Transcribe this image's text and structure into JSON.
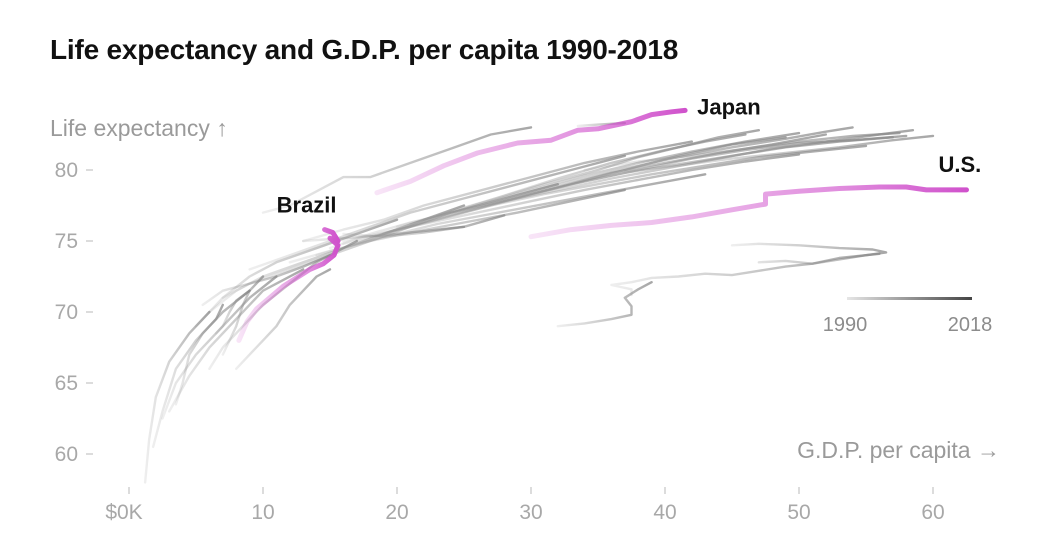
{
  "title": "Life expectancy and G.D.P. per capita 1990-2018",
  "colors": {
    "highlight": "#d052cc",
    "background_line": "#8a8a8a",
    "tick": "#a8a8a8",
    "text": "#111111"
  },
  "chart_data": {
    "type": "line",
    "title": "Life expectancy and G.D.P. per capita 1990-2018",
    "xlabel": "G.D.P. per capita →",
    "ylabel": "Life expectancy ↑",
    "xlim": [
      0,
      65
    ],
    "ylim": [
      58,
      86
    ],
    "x_ticks": [
      {
        "value": 0,
        "label": "$0K"
      },
      {
        "value": 10,
        "label": "10"
      },
      {
        "value": 20,
        "label": "20"
      },
      {
        "value": 30,
        "label": "30"
      },
      {
        "value": 40,
        "label": "40"
      },
      {
        "value": 50,
        "label": "50"
      },
      {
        "value": 60,
        "label": "60"
      }
    ],
    "y_ticks": [
      {
        "value": 60,
        "label": "60"
      },
      {
        "value": 65,
        "label": "65"
      },
      {
        "value": 70,
        "label": "70"
      },
      {
        "value": 75,
        "label": "75"
      },
      {
        "value": 80,
        "label": "80"
      }
    ],
    "legend": {
      "type": "time-gradient",
      "start_label": "1990",
      "end_label": "2018",
      "placement": "right"
    },
    "highlighted_series": [
      {
        "name": "Japan",
        "label": "Japan",
        "points": [
          [
            18.5,
            78.4
          ],
          [
            21,
            79.2
          ],
          [
            23.5,
            80.3
          ],
          [
            26,
            81.2
          ],
          [
            29,
            81.9
          ],
          [
            31.5,
            82.1
          ],
          [
            33.5,
            82.8
          ],
          [
            35,
            82.9
          ],
          [
            37.5,
            83.4
          ],
          [
            39,
            83.9
          ],
          [
            40.5,
            84.1
          ],
          [
            41.5,
            84.2
          ]
        ]
      },
      {
        "name": "United States",
        "label": "U.S.",
        "points": [
          [
            30,
            75.3
          ],
          [
            33,
            75.8
          ],
          [
            36,
            76.1
          ],
          [
            39,
            76.3
          ],
          [
            42,
            76.7
          ],
          [
            45,
            77.2
          ],
          [
            47.5,
            77.6
          ],
          [
            47.5,
            78.3
          ],
          [
            50,
            78.5
          ],
          [
            53,
            78.7
          ],
          [
            56,
            78.8
          ],
          [
            58,
            78.8
          ],
          [
            59.5,
            78.6
          ],
          [
            62.5,
            78.6
          ]
        ]
      },
      {
        "name": "Brazil",
        "label": "Brazil",
        "points": [
          [
            8.2,
            68.0
          ],
          [
            8.8,
            69.3
          ],
          [
            9.5,
            70.2
          ],
          [
            10.5,
            71.0
          ],
          [
            11.5,
            71.8
          ],
          [
            12.5,
            72.4
          ],
          [
            13.5,
            73.0
          ],
          [
            14.5,
            73.4
          ],
          [
            15.3,
            74.0
          ],
          [
            15.6,
            74.7
          ],
          [
            15.0,
            75.2
          ],
          [
            15.6,
            75.0
          ],
          [
            15.2,
            75.6
          ],
          [
            14.6,
            75.8
          ]
        ]
      }
    ],
    "other_series": [
      [
        [
          1.2,
          58.0
        ],
        [
          1.5,
          61
        ],
        [
          2,
          64
        ],
        [
          3,
          66.5
        ],
        [
          4.5,
          68.5
        ],
        [
          6,
          70
        ]
      ],
      [
        [
          1.8,
          60.5
        ],
        [
          2.5,
          63
        ],
        [
          3.5,
          66
        ],
        [
          5,
          68
        ],
        [
          7,
          70
        ],
        [
          9,
          71.5
        ]
      ],
      [
        [
          2.5,
          62.5
        ],
        [
          3.5,
          65
        ],
        [
          5,
          67
        ],
        [
          7,
          69
        ],
        [
          9,
          71
        ],
        [
          11,
          72.5
        ]
      ],
      [
        [
          3,
          63
        ],
        [
          4.5,
          65.5
        ],
        [
          6,
          67.5
        ],
        [
          8,
          69.5
        ],
        [
          10,
          71.5
        ],
        [
          13,
          73
        ]
      ],
      [
        [
          6,
          66
        ],
        [
          7,
          67.5
        ],
        [
          8.5,
          69
        ],
        [
          10,
          70.5
        ],
        [
          12,
          72
        ],
        [
          14,
          73.5
        ],
        [
          17,
          75
        ]
      ],
      [
        [
          5,
          69
        ],
        [
          7,
          71
        ],
        [
          9,
          72.5
        ],
        [
          11,
          73.5
        ],
        [
          14,
          74.5
        ],
        [
          17,
          75.5
        ],
        [
          20,
          76.5
        ]
      ],
      [
        [
          6,
          70
        ],
        [
          8,
          71.5
        ],
        [
          10,
          72.5
        ],
        [
          13,
          73.5
        ],
        [
          16,
          74.5
        ],
        [
          19,
          75.5
        ],
        [
          22,
          76.5
        ],
        [
          25,
          77.5
        ]
      ],
      [
        [
          7,
          71
        ],
        [
          9,
          72
        ],
        [
          12,
          73
        ],
        [
          15,
          74
        ],
        [
          18,
          75
        ],
        [
          21,
          76
        ],
        [
          24,
          77
        ],
        [
          28,
          78
        ],
        [
          32,
          79
        ]
      ],
      [
        [
          9,
          73
        ],
        [
          12,
          74
        ],
        [
          15,
          75
        ],
        [
          18,
          76
        ],
        [
          21,
          77
        ],
        [
          25,
          78
        ],
        [
          29,
          79
        ],
        [
          33,
          80
        ],
        [
          37,
          81
        ]
      ],
      [
        [
          13,
          75
        ],
        [
          16,
          75.8
        ],
        [
          19,
          76.5
        ],
        [
          22,
          77.5
        ],
        [
          26,
          78.5
        ],
        [
          30,
          79.5
        ],
        [
          34,
          80.5
        ],
        [
          38,
          81.3
        ],
        [
          42,
          82
        ]
      ],
      [
        [
          15,
          74.5
        ],
        [
          18,
          75.5
        ],
        [
          21,
          76.3
        ],
        [
          25,
          77.2
        ],
        [
          29,
          78.1
        ],
        [
          33,
          79
        ],
        [
          37,
          80
        ],
        [
          41,
          81
        ],
        [
          45,
          81.8
        ],
        [
          49,
          82.3
        ]
      ],
      [
        [
          16,
          74.8
        ],
        [
          20,
          75.8
        ],
        [
          24,
          76.8
        ],
        [
          28,
          77.8
        ],
        [
          32,
          78.8
        ],
        [
          36,
          79.8
        ],
        [
          40,
          80.5
        ],
        [
          44,
          81.2
        ],
        [
          48,
          81.8
        ],
        [
          52,
          82.5
        ]
      ],
      [
        [
          17,
          75
        ],
        [
          21,
          76
        ],
        [
          25,
          77
        ],
        [
          29,
          78
        ],
        [
          33,
          79
        ],
        [
          37,
          79.8
        ],
        [
          41,
          80.4
        ],
        [
          45,
          81
        ],
        [
          49,
          81.6
        ],
        [
          53,
          82
        ],
        [
          57,
          82.3
        ]
      ],
      [
        [
          18,
          75.3
        ],
        [
          22,
          76.3
        ],
        [
          26,
          77.3
        ],
        [
          30,
          78.3
        ],
        [
          34,
          79.2
        ],
        [
          38,
          80
        ],
        [
          42,
          80.8
        ],
        [
          46,
          81.4
        ],
        [
          50,
          81.9
        ],
        [
          54,
          82.1
        ],
        [
          58,
          82.4
        ]
      ],
      [
        [
          19,
          75.5
        ],
        [
          23,
          76.5
        ],
        [
          27,
          77.5
        ],
        [
          31,
          78.3
        ],
        [
          35,
          79
        ],
        [
          39,
          79.7
        ],
        [
          43,
          80.3
        ],
        [
          47,
          80.9
        ],
        [
          51,
          81.3
        ],
        [
          55,
          81.7
        ]
      ],
      [
        [
          20,
          76
        ],
        [
          24,
          77
        ],
        [
          28,
          77.8
        ],
        [
          32,
          78.6
        ],
        [
          36,
          79.4
        ],
        [
          40,
          80.1
        ],
        [
          44,
          80.8
        ],
        [
          48,
          81.5
        ],
        [
          52,
          82
        ],
        [
          56,
          82.5
        ],
        [
          58.5,
          82.8
        ]
      ],
      [
        [
          21,
          76.2
        ],
        [
          25,
          77.2
        ],
        [
          29,
          78.2
        ],
        [
          33,
          79.2
        ],
        [
          37,
          80.1
        ],
        [
          41,
          80.9
        ],
        [
          45,
          81.6
        ],
        [
          49,
          82.2
        ],
        [
          52,
          82.7
        ],
        [
          54,
          83
        ]
      ],
      [
        [
          22,
          76.5
        ],
        [
          26,
          77.6
        ],
        [
          30,
          78.6
        ],
        [
          34,
          79.6
        ],
        [
          38,
          80.5
        ],
        [
          42,
          81.3
        ],
        [
          46,
          82
        ],
        [
          50,
          82.6
        ]
      ],
      [
        [
          23,
          76.8
        ],
        [
          27,
          77.9
        ],
        [
          31,
          79
        ],
        [
          35,
          80
        ],
        [
          38,
          80.9
        ],
        [
          41,
          81.6
        ],
        [
          44,
          82.3
        ],
        [
          47,
          82.8
        ]
      ],
      [
        [
          24,
          77
        ],
        [
          28,
          78.2
        ],
        [
          32,
          79.4
        ],
        [
          36,
          80.5
        ],
        [
          40,
          81.4
        ],
        [
          43,
          82
        ],
        [
          46,
          82.5
        ]
      ],
      [
        [
          16,
          75
        ],
        [
          19,
          75.6
        ],
        [
          22,
          76.2
        ],
        [
          26,
          77
        ],
        [
          30,
          77.8
        ],
        [
          34,
          78.6
        ],
        [
          38,
          79.3
        ],
        [
          42,
          80
        ],
        [
          46,
          80.6
        ],
        [
          50,
          81.1
        ]
      ],
      [
        [
          14,
          74
        ],
        [
          17,
          74.8
        ],
        [
          20,
          75.5
        ],
        [
          23,
          76.2
        ],
        [
          27,
          76.9
        ],
        [
          31,
          77.6
        ],
        [
          35,
          78.3
        ],
        [
          39,
          79
        ],
        [
          43,
          79.7
        ]
      ],
      [
        [
          12,
          73.5
        ],
        [
          15,
          74.3
        ],
        [
          18,
          75
        ],
        [
          21,
          75.6
        ],
        [
          25,
          76.3
        ],
        [
          29,
          77
        ],
        [
          33,
          77.8
        ],
        [
          37,
          78.6
        ]
      ],
      [
        [
          13,
          75
        ],
        [
          16,
          75.2
        ],
        [
          19,
          75.4
        ],
        [
          22,
          75.7
        ],
        [
          25,
          76
        ]
      ],
      [
        [
          16,
          75.5
        ],
        [
          19,
          75.3
        ],
        [
          22,
          75.6
        ],
        [
          25,
          76
        ],
        [
          28,
          76.8
        ]
      ],
      [
        [
          37,
          79.9
        ],
        [
          41,
          80.3
        ],
        [
          45,
          80.8
        ],
        [
          49,
          81.2
        ],
        [
          53,
          81.6
        ],
        [
          57,
          82.1
        ],
        [
          60,
          82.4
        ]
      ],
      [
        [
          34,
          80
        ],
        [
          38,
          80.6
        ],
        [
          42,
          81
        ],
        [
          46,
          81.5
        ],
        [
          50,
          82
        ],
        [
          54,
          82.4
        ],
        [
          57.5,
          82.6
        ]
      ],
      [
        [
          33.5,
          83.1
        ],
        [
          35,
          83.2
        ],
        [
          37,
          83.3
        ]
      ],
      [
        [
          47,
          73.5
        ],
        [
          49,
          73.6
        ],
        [
          51,
          73.4
        ],
        [
          53,
          73.7
        ],
        [
          55,
          74
        ],
        [
          56.5,
          74.2
        ],
        [
          55.5,
          74.4
        ],
        [
          53,
          74.5
        ],
        [
          50,
          74.7
        ],
        [
          47,
          74.8
        ],
        [
          45,
          74.7
        ]
      ],
      [
        [
          37.5,
          71.2
        ],
        [
          37.5,
          71.6
        ],
        [
          36,
          71.9
        ],
        [
          37.5,
          72.1
        ],
        [
          39,
          72.4
        ],
        [
          41,
          72.5
        ],
        [
          43,
          72.7
        ],
        [
          45,
          72.6
        ],
        [
          47,
          72.9
        ],
        [
          49,
          73.2
        ],
        [
          51,
          73.4
        ],
        [
          53,
          73.8
        ],
        [
          55,
          74
        ],
        [
          56,
          74.1
        ]
      ],
      [
        [
          32,
          69
        ],
        [
          34,
          69.2
        ],
        [
          36,
          69.5
        ],
        [
          37.5,
          69.8
        ],
        [
          37.5,
          70.4
        ],
        [
          37,
          71
        ],
        [
          38,
          71.6
        ],
        [
          39,
          72.1
        ]
      ],
      [
        [
          6.5,
          68.5
        ],
        [
          7,
          69
        ],
        [
          7.5,
          70
        ],
        [
          8,
          70.8
        ],
        [
          9,
          71.5
        ]
      ],
      [
        [
          7,
          67
        ],
        [
          7.5,
          68
        ],
        [
          8,
          69
        ],
        [
          8.5,
          70.5
        ],
        [
          9,
          71.5
        ],
        [
          10,
          72.5
        ]
      ],
      [
        [
          3.5,
          63.5
        ],
        [
          4,
          65
        ],
        [
          4.5,
          67
        ],
        [
          5.5,
          68.5
        ],
        [
          6.5,
          69.5
        ],
        [
          7,
          70.5
        ]
      ],
      [
        [
          8,
          66
        ],
        [
          9,
          67
        ],
        [
          10,
          68
        ],
        [
          11,
          69
        ],
        [
          12,
          70.5
        ],
        [
          13,
          71.5
        ],
        [
          14,
          72.5
        ],
        [
          15,
          73
        ]
      ],
      [
        [
          5.5,
          70.5
        ],
        [
          7,
          71.5
        ],
        [
          9,
          72
        ],
        [
          11,
          72.5
        ],
        [
          13,
          73.2
        ],
        [
          15,
          74
        ]
      ],
      [
        [
          10,
          77
        ],
        [
          12,
          77.5
        ],
        [
          14,
          78.5
        ],
        [
          16,
          79.5
        ],
        [
          18,
          79.5
        ],
        [
          21,
          80.5
        ],
        [
          24,
          81.5
        ],
        [
          27,
          82.5
        ],
        [
          30,
          83
        ]
      ]
    ]
  }
}
